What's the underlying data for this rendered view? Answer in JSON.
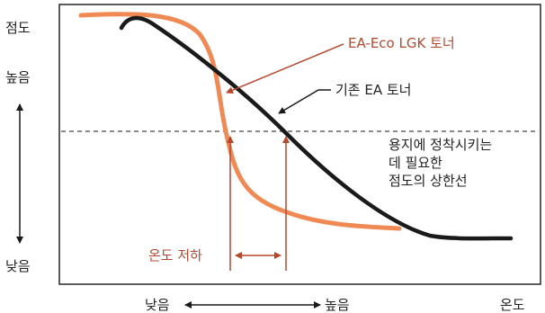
{
  "y_axis": {
    "top_label": "점도",
    "high_label": "높음",
    "low_label": "낮음"
  },
  "x_axis": {
    "low_label": "낮음",
    "high_label": "높음",
    "title": "온도"
  },
  "legend": {
    "new_toner": "EA-Eco LGK 토너",
    "old_toner": "기존 EA 토너"
  },
  "threshold_note": [
    "용지에 정착시키는",
    "데 필요한",
    "점도의 상한선"
  ],
  "drop_label": "온도 저하",
  "colors": {
    "new_toner": "#f08a55",
    "old_toner": "#1a1a1a",
    "accent": "#b5482e",
    "frame": "#333333"
  }
}
